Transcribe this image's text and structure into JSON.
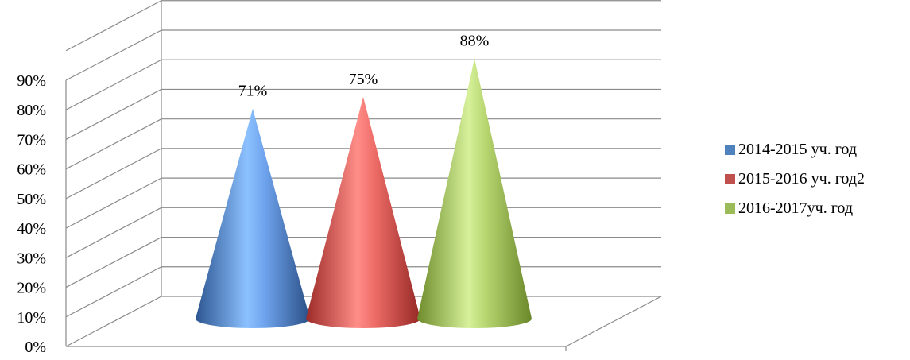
{
  "chart_data": {
    "type": "bar",
    "subtype": "3d-cone",
    "title": "",
    "xlabel": "",
    "ylabel": "",
    "ylim": [
      0,
      100
    ],
    "y_ticks": [
      "0%",
      "10%",
      "20%",
      "30%",
      "40%",
      "50%",
      "60%",
      "70%",
      "80%",
      "90%"
    ],
    "grid": true,
    "legend_position": "right",
    "series": [
      {
        "name": "2014-2015 уч. год",
        "values": [
          71
        ],
        "label": "71%",
        "color": "#4F81BD"
      },
      {
        "name": "2015-2016 уч. год2",
        "values": [
          75
        ],
        "label": "75%",
        "color": "#C0504D"
      },
      {
        "name": "2016-2017уч. год",
        "values": [
          88
        ],
        "label": "88%",
        "color": "#9BBB59"
      }
    ]
  }
}
